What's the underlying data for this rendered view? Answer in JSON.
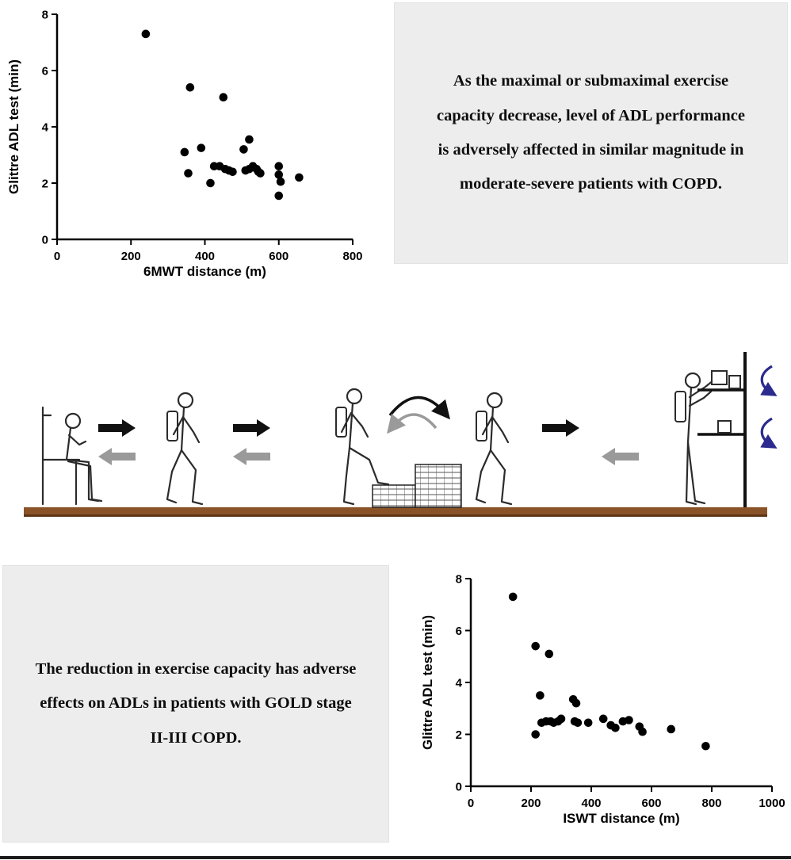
{
  "top_box": {
    "text": "As the maximal or submaximal exercise capacity decrease, level of ADL performance is adversely affected in similar magnitude in moderate-severe patients with COPD."
  },
  "bottom_box": {
    "text": "The reduction in exercise capacity has adverse effects on ADLs in patients with GOLD stage II-III COPD."
  },
  "colors": {
    "box_bg": "#ededed",
    "data_point": "#000000",
    "forward_arrow": "#111111",
    "return_arrow": "#9a9a9a",
    "shelf_arrow": "#2b2a8e",
    "floor": "#8a5327"
  },
  "illustration": {
    "stage_icons": [
      "sit-to-stand-icon",
      "walk-with-backpack-icon",
      "step-over-icon",
      "turn-around-icon",
      "walk-with-backpack-icon",
      "shelf-task-icon"
    ]
  },
  "chart_data": [
    {
      "type": "scatter",
      "title": "",
      "xlabel": "6MWT distance (m)",
      "ylabel": "Glittre ADL test (min)",
      "xlim": [
        0,
        800
      ],
      "ylim": [
        0,
        8
      ],
      "xticks": [
        0,
        200,
        400,
        600,
        800
      ],
      "yticks": [
        0,
        2,
        4,
        6,
        8
      ],
      "grid": false,
      "legend": "none",
      "points": [
        [
          240,
          7.3
        ],
        [
          360,
          5.4
        ],
        [
          450,
          5.05
        ],
        [
          345,
          3.1
        ],
        [
          390,
          3.25
        ],
        [
          355,
          2.35
        ],
        [
          415,
          2.0
        ],
        [
          425,
          2.6
        ],
        [
          440,
          2.6
        ],
        [
          455,
          2.5
        ],
        [
          465,
          2.45
        ],
        [
          475,
          2.4
        ],
        [
          505,
          3.2
        ],
        [
          520,
          3.55
        ],
        [
          510,
          2.45
        ],
        [
          520,
          2.5
        ],
        [
          530,
          2.6
        ],
        [
          540,
          2.5
        ],
        [
          545,
          2.4
        ],
        [
          550,
          2.35
        ],
        [
          600,
          2.6
        ],
        [
          600,
          2.3
        ],
        [
          605,
          2.05
        ],
        [
          600,
          1.55
        ],
        [
          655,
          2.2
        ]
      ]
    },
    {
      "type": "scatter",
      "title": "",
      "xlabel": "ISWT distance (m)",
      "ylabel": "Glittre ADL test (min)",
      "xlim": [
        0,
        1000
      ],
      "ylim": [
        0,
        8
      ],
      "xticks": [
        0,
        200,
        400,
        600,
        800,
        1000
      ],
      "yticks": [
        0,
        2,
        4,
        6,
        8
      ],
      "grid": false,
      "legend": "none",
      "points": [
        [
          140,
          7.3
        ],
        [
          215,
          5.4
        ],
        [
          260,
          5.1
        ],
        [
          230,
          3.5
        ],
        [
          215,
          2.0
        ],
        [
          235,
          2.45
        ],
        [
          250,
          2.5
        ],
        [
          265,
          2.5
        ],
        [
          275,
          2.45
        ],
        [
          290,
          2.5
        ],
        [
          300,
          2.6
        ],
        [
          340,
          3.35
        ],
        [
          350,
          3.2
        ],
        [
          345,
          2.5
        ],
        [
          355,
          2.45
        ],
        [
          390,
          2.45
        ],
        [
          440,
          2.6
        ],
        [
          465,
          2.35
        ],
        [
          480,
          2.25
        ],
        [
          505,
          2.5
        ],
        [
          525,
          2.55
        ],
        [
          560,
          2.3
        ],
        [
          570,
          2.1
        ],
        [
          665,
          2.2
        ],
        [
          780,
          1.55
        ]
      ]
    }
  ]
}
